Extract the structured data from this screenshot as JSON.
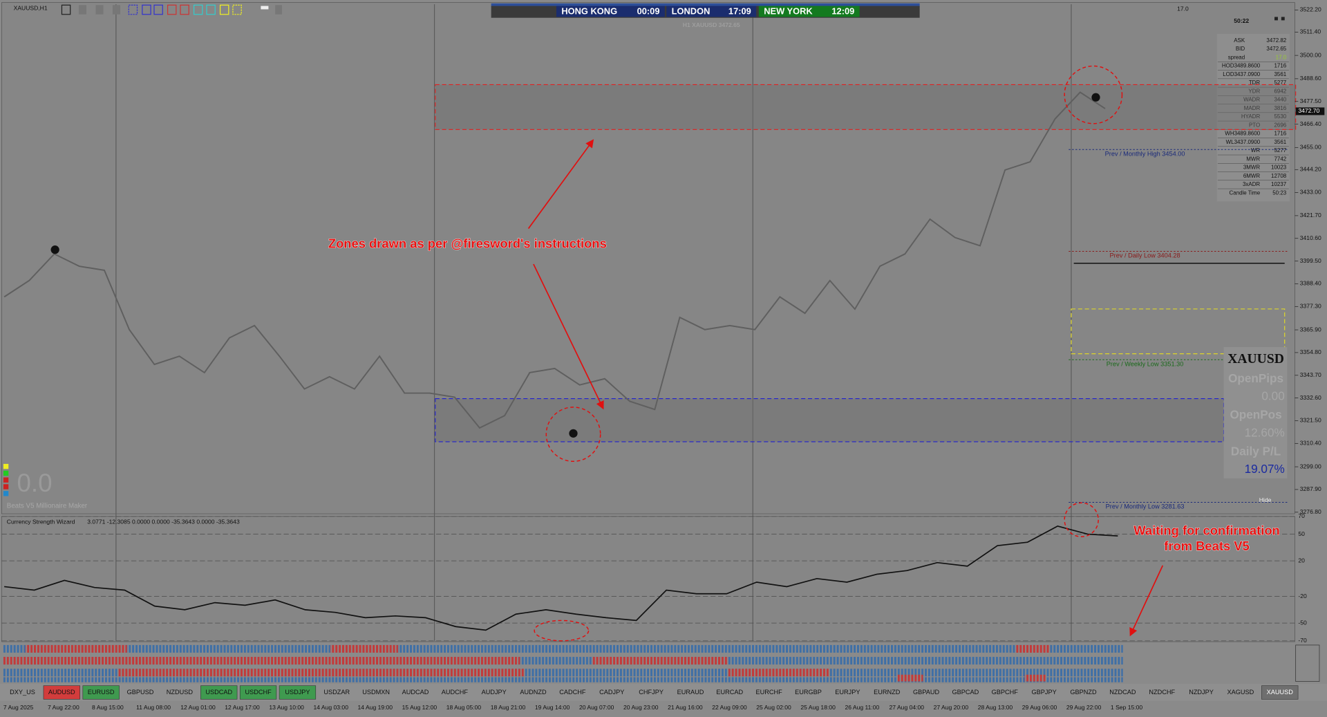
{
  "window_title": "XAUUSD,H1",
  "sessions": [
    {
      "city": "HONG KONG",
      "time": "00:09",
      "color": "#1b2d6e"
    },
    {
      "city": "LONDON",
      "time": "17:09",
      "color": "#1b2d6e"
    },
    {
      "city": "NEW YORK",
      "time": "12:09",
      "color": "#137a1f"
    }
  ],
  "spread_top": "17.0",
  "header": "H1 XAUUSD 3472.65",
  "countdown": "50:22",
  "info_panel": [
    [
      "ASK",
      "3472.82"
    ],
    [
      "BID",
      "3472.65"
    ],
    [
      "spread",
      "17.0"
    ],
    [
      "HOD3489.8600",
      "1716"
    ],
    [
      "LOD3437.0900",
      "3561"
    ],
    [
      "TDR",
      "5277"
    ],
    [
      "YDR",
      "6942"
    ],
    [
      "WADR",
      "3440"
    ],
    [
      "MADR",
      "3816"
    ],
    [
      "HYADR",
      "5530"
    ],
    [
      "PTO",
      "2696"
    ],
    [
      "WH3489.8600",
      "1716"
    ],
    [
      "WL3437.0900",
      "3561"
    ],
    [
      "WR",
      "5277"
    ],
    [
      "MWR",
      "7742"
    ],
    [
      "3MWR",
      "10023"
    ],
    [
      "6MWR",
      "12708"
    ],
    [
      "3xADR",
      "10237"
    ],
    [
      "Candle Time",
      "50:23"
    ]
  ],
  "price_chart": {
    "type": "line",
    "color": "#5f5f5f",
    "ylim": [
      3276,
      3525
    ],
    "yticks": [
      {
        "value": 3522.2,
        "label": "3522.20"
      },
      {
        "value": 3511.4,
        "label": "3511.40"
      },
      {
        "value": 3500,
        "label": "3500.00"
      },
      {
        "value": 3488.6,
        "label": "3488.60"
      },
      {
        "value": 3477.5,
        "label": "3477.50"
      },
      {
        "value": 3466.4,
        "label": "3466.40"
      },
      {
        "value": 3455,
        "label": "3455.00"
      },
      {
        "value": 3444.2,
        "label": "3444.20"
      },
      {
        "value": 3433,
        "label": "3433.00"
      },
      {
        "value": 3421.7,
        "label": "3421.70"
      },
      {
        "value": 3410.6,
        "label": "3410.60"
      },
      {
        "value": 3399.5,
        "label": "3399.50"
      },
      {
        "value": 3388.4,
        "label": "3388.40"
      },
      {
        "value": 3377.3,
        "label": "3377.30"
      },
      {
        "value": 3365.9,
        "label": "3365.90"
      },
      {
        "value": 3354.8,
        "label": "3354.80"
      },
      {
        "value": 3343.7,
        "label": "3343.70"
      },
      {
        "value": 3332.6,
        "label": "3332.60"
      },
      {
        "value": 3321.5,
        "label": "3321.50"
      },
      {
        "value": 3310.4,
        "label": "3310.40"
      },
      {
        "value": 3299,
        "label": "3299.00"
      },
      {
        "value": 3287.9,
        "label": "3287.90"
      },
      {
        "value": 3276.8,
        "label": "3276.80"
      }
    ],
    "closes": [
      3382,
      3390,
      3403,
      3397,
      3395,
      3366,
      3349,
      3353,
      3345,
      3362,
      3368,
      3353,
      3337,
      3343,
      3337,
      3353,
      3335,
      3335,
      3333,
      3318,
      3324,
      3345,
      3347,
      3339,
      3342,
      3331,
      3327,
      3372,
      3366,
      3368,
      3366,
      3382,
      3374,
      3390,
      3376,
      3397,
      3403,
      3420,
      3411,
      3407,
      3444,
      3448,
      3469,
      3482,
      3474
    ],
    "current_price": {
      "value": 3472.7,
      "label": "3472.70"
    },
    "levels": [
      {
        "label": "Prev / Monthly High 3454.00",
        "price": 3454,
        "color": "#1a2a7a"
      },
      {
        "label": "Prev / Daily Low 3404.28",
        "price": 3404.28,
        "color": "#8a1a1a"
      },
      {
        "label": "Prev / Weekly Low 3351.30",
        "price": 3351.3,
        "color": "#1a6a1a"
      },
      {
        "label": "Prev / Monthly Low 3281.63",
        "price": 3281.63,
        "color": "#1a2a7a"
      }
    ],
    "zones": [
      {
        "top": 3485.7,
        "bottom": 3463.8,
        "color": "#e02020"
      },
      {
        "top": 3332.3,
        "bottom": 3311.2,
        "color": "#2020d0"
      },
      {
        "top": 3376.1,
        "bottom": 3354.2,
        "color": "#e8e020"
      }
    ]
  },
  "annotations": [
    "Zones drawn as per @firesword's instructions",
    "Waiting for confirmation",
    "from Beats V5"
  ],
  "beats": {
    "value": "0.0",
    "name": "Beats V5 Millionaire Maker"
  },
  "account_panel": {
    "symbol": "XAUUSD",
    "rows": [
      [
        "OpenPips",
        "0.00"
      ],
      [
        "OpenPos",
        "12.60%"
      ],
      [
        "Daily P/L",
        "19.07%"
      ]
    ],
    "hide": "Hide"
  },
  "indicator": {
    "title": "Currency Strength Wizard",
    "readout": "3.0771 -12.3085 0.0000 0.0000 -35.3643 0.0000 -35.3643",
    "ylim": [
      -70,
      70
    ],
    "yticks": [
      70,
      50,
      20,
      -20,
      -50,
      -70
    ],
    "values": [
      -9,
      -13,
      -2,
      -10,
      -13,
      -31,
      -35,
      -27,
      -30,
      -24,
      -35,
      -38,
      -44,
      -42,
      -44,
      -54,
      -58,
      -40,
      -35,
      -40,
      -44,
      -47,
      -13,
      -17,
      -17,
      -4,
      -9,
      0,
      -4,
      5,
      9,
      18,
      14,
      37,
      41,
      59,
      50,
      48
    ]
  },
  "symbol_tabs": [
    {
      "name": "DXY_US",
      "state": "normal"
    },
    {
      "name": "AUDUSD",
      "state": "red"
    },
    {
      "name": "EURUSD",
      "state": "green"
    },
    {
      "name": "GBPUSD",
      "state": "normal"
    },
    {
      "name": "NZDUSD",
      "state": "normal"
    },
    {
      "name": "USDCAD",
      "state": "green"
    },
    {
      "name": "USDCHF",
      "state": "green"
    },
    {
      "name": "USDJPY",
      "state": "green"
    },
    {
      "name": "USDZAR",
      "state": "normal"
    },
    {
      "name": "USDMXN",
      "state": "normal"
    },
    {
      "name": "AUDCAD",
      "state": "normal"
    },
    {
      "name": "AUDCHF",
      "state": "normal"
    },
    {
      "name": "AUDJPY",
      "state": "normal"
    },
    {
      "name": "AUDNZD",
      "state": "normal"
    },
    {
      "name": "CADCHF",
      "state": "normal"
    },
    {
      "name": "CADJPY",
      "state": "normal"
    },
    {
      "name": "CHFJPY",
      "state": "normal"
    },
    {
      "name": "EURAUD",
      "state": "normal"
    },
    {
      "name": "EURCAD",
      "state": "normal"
    },
    {
      "name": "EURCHF",
      "state": "normal"
    },
    {
      "name": "EURGBP",
      "state": "normal"
    },
    {
      "name": "EURJPY",
      "state": "normal"
    },
    {
      "name": "EURNZD",
      "state": "normal"
    },
    {
      "name": "GBPAUD",
      "state": "normal"
    },
    {
      "name": "GBPCAD",
      "state": "normal"
    },
    {
      "name": "GBPCHF",
      "state": "normal"
    },
    {
      "name": "GBPJPY",
      "state": "normal"
    },
    {
      "name": "GBPNZD",
      "state": "normal"
    },
    {
      "name": "NZDCAD",
      "state": "normal"
    },
    {
      "name": "NZDCHF",
      "state": "normal"
    },
    {
      "name": "NZDJPY",
      "state": "normal"
    },
    {
      "name": "XAGUSD",
      "state": "normal"
    },
    {
      "name": "XAUUSD",
      "state": "active"
    }
  ],
  "time_axis": [
    "7 Aug 2025",
    "7 Aug 22:00",
    "8 Aug 15:00",
    "11 Aug 08:00",
    "12 Aug 01:00",
    "12 Aug 17:00",
    "13 Aug 10:00",
    "14 Aug 03:00",
    "14 Aug 19:00",
    "15 Aug 12:00",
    "18 Aug 05:00",
    "18 Aug 21:00",
    "19 Aug 14:00",
    "20 Aug 07:00",
    "20 Aug 23:00",
    "21 Aug 16:00",
    "22 Aug 09:00",
    "25 Aug 02:00",
    "25 Aug 18:00",
    "26 Aug 11:00",
    "27 Aug 04:00",
    "27 Aug 20:00",
    "28 Aug 13:00",
    "29 Aug 06:00",
    "29 Aug 22:00",
    "1 Sep 15:00"
  ]
}
